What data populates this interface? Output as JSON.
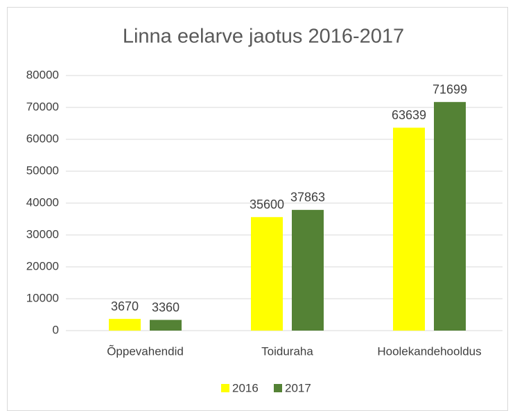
{
  "chart_data": {
    "type": "bar",
    "title": "Linna eelarve jaotus 2016-2017",
    "categories": [
      "Õppevahendid",
      "Toiduraha",
      "Hoolekandehooldus"
    ],
    "series": [
      {
        "name": "2016",
        "color": "#ffff00",
        "values": [
          3670,
          35600,
          63639
        ]
      },
      {
        "name": "2017",
        "color": "#548235",
        "values": [
          3360,
          37863,
          71699
        ]
      }
    ],
    "ylim": [
      0,
      80000
    ],
    "yticks": [
      0,
      10000,
      20000,
      30000,
      40000,
      50000,
      60000,
      70000,
      80000
    ],
    "grid": true,
    "legend": "bottom"
  }
}
